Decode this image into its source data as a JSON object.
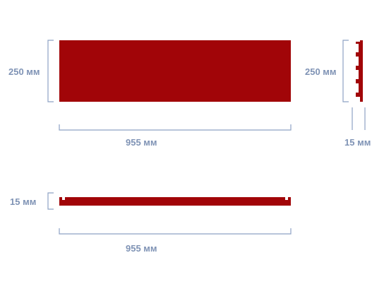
{
  "colors": {
    "panel": "#a10508",
    "dimension": "#8ea2c4",
    "label": "#7f93b5"
  },
  "views": {
    "front": {
      "height_label": "250 мм",
      "width_label": "955 мм"
    },
    "side": {
      "height_label": "250 мм",
      "thickness_label": "15 мм"
    },
    "top": {
      "thickness_label": "15 мм",
      "width_label": "955 мм"
    }
  }
}
